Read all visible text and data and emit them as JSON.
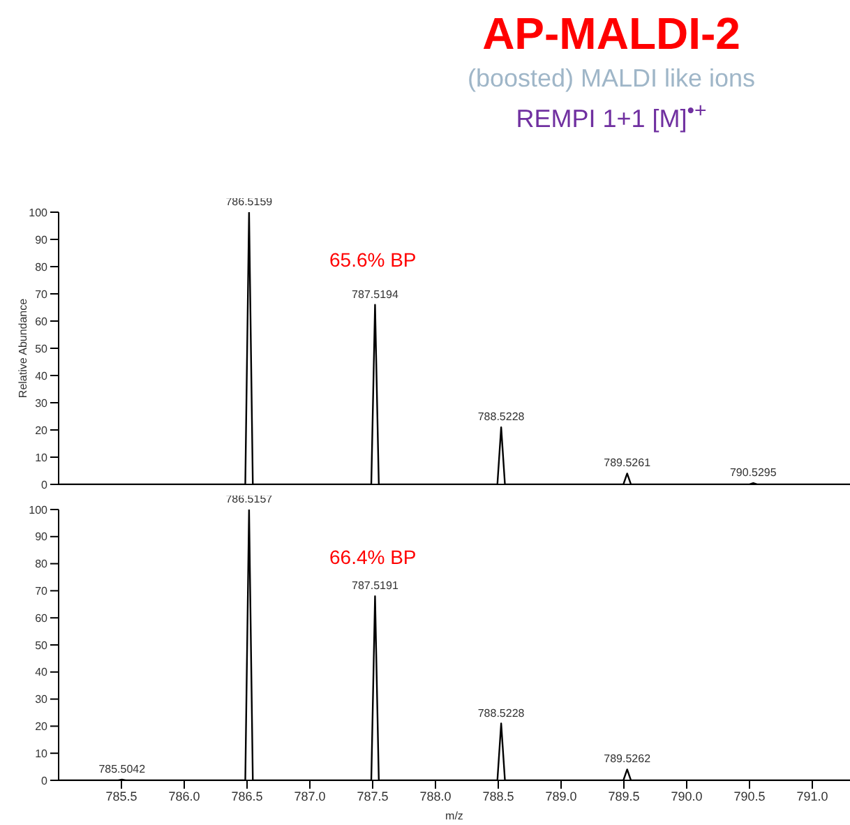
{
  "chart_data": [
    {
      "type": "line",
      "title": "AP-MALDI-2",
      "subtitle": "(boosted) MALDI like ions\nREMPI 1+1 [M]$^{•+}$",
      "ylabel": "Relative Abundance",
      "series": [
        {
          "color": "#000000",
          "x": [
            785.0,
            786.486,
            786.516,
            786.546,
            787.489,
            787.519,
            787.549,
            788.493,
            788.523,
            788.553,
            789.496,
            789.526,
            789.556,
            790.5,
            790.53,
            790.56,
            791.3
          ],
          "values": [
            0,
            0,
            100,
            0,
            0,
            66,
            0,
            0,
            21,
            0,
            0,
            4,
            0,
            0,
            0.5,
            0,
            0
          ]
        }
      ],
      "xlim": [
        785.0,
        791.3
      ],
      "ylim": [
        0,
        100
      ],
      "yticks": [
        0,
        10,
        20,
        30,
        40,
        50,
        60,
        70,
        80,
        90,
        100
      ],
      "tick_labels": "y",
      "grid": false,
      "legend": false,
      "marker": "none",
      "line_style": "solid",
      "annotations": [
        "65.6% BP",
        {
          "text": "786.5159",
          "x": 786.5159,
          "y": 100
        },
        {
          "text": "787.5194",
          "x": 787.5194,
          "y": 66
        },
        {
          "text": "788.5228",
          "x": 788.5228,
          "y": 21
        },
        {
          "text": "789.5261",
          "x": 789.5261,
          "y": 4
        },
        {
          "text": "790.5295",
          "x": 790.5295,
          "y": 0.5
        }
      ]
    },
    {
      "type": "line",
      "xlabel": "m/z",
      "series": [
        {
          "color": "#000000",
          "x": [
            785.0,
            785.474,
            785.504,
            785.534,
            786.486,
            786.516,
            786.546,
            787.489,
            787.519,
            787.549,
            788.493,
            788.523,
            788.553,
            789.496,
            789.526,
            789.556,
            791.3
          ],
          "values": [
            0,
            0,
            0.3,
            0,
            0,
            100,
            0,
            0,
            68,
            0,
            0,
            21,
            0,
            0,
            4,
            0,
            0
          ]
        }
      ],
      "xlim": [
        785.0,
        791.3
      ],
      "xticks": [
        785.5,
        {
          "value": 786,
          "label": "786.0"
        },
        786.5,
        {
          "value": 787,
          "label": "787.0"
        },
        787.5,
        {
          "value": 788,
          "label": "788.0"
        },
        788.5,
        {
          "value": 789,
          "label": "789.0"
        },
        789.5,
        {
          "value": 790,
          "label": "790.0"
        },
        790.5,
        {
          "value": 791,
          "label": "791.0"
        }
      ],
      "ylim": [
        0,
        100
      ],
      "yticks": [
        0,
        10,
        20,
        30,
        40,
        50,
        60,
        70,
        80,
        90,
        100
      ],
      "grid": false,
      "legend": false,
      "marker": "none",
      "line_style": "solid",
      "annotations": [
        "66.4% BP",
        {
          "text": "785.5042",
          "x": 785.5042,
          "y": 0.3
        },
        {
          "text": "786.5157",
          "x": 786.5157,
          "y": 100
        },
        {
          "text": "787.5191",
          "x": 787.5191,
          "y": 68
        },
        {
          "text": "788.5228",
          "x": 788.5228,
          "y": 21
        },
        {
          "text": "789.5262",
          "x": 789.5262,
          "y": 4
        }
      ]
    }
  ]
}
